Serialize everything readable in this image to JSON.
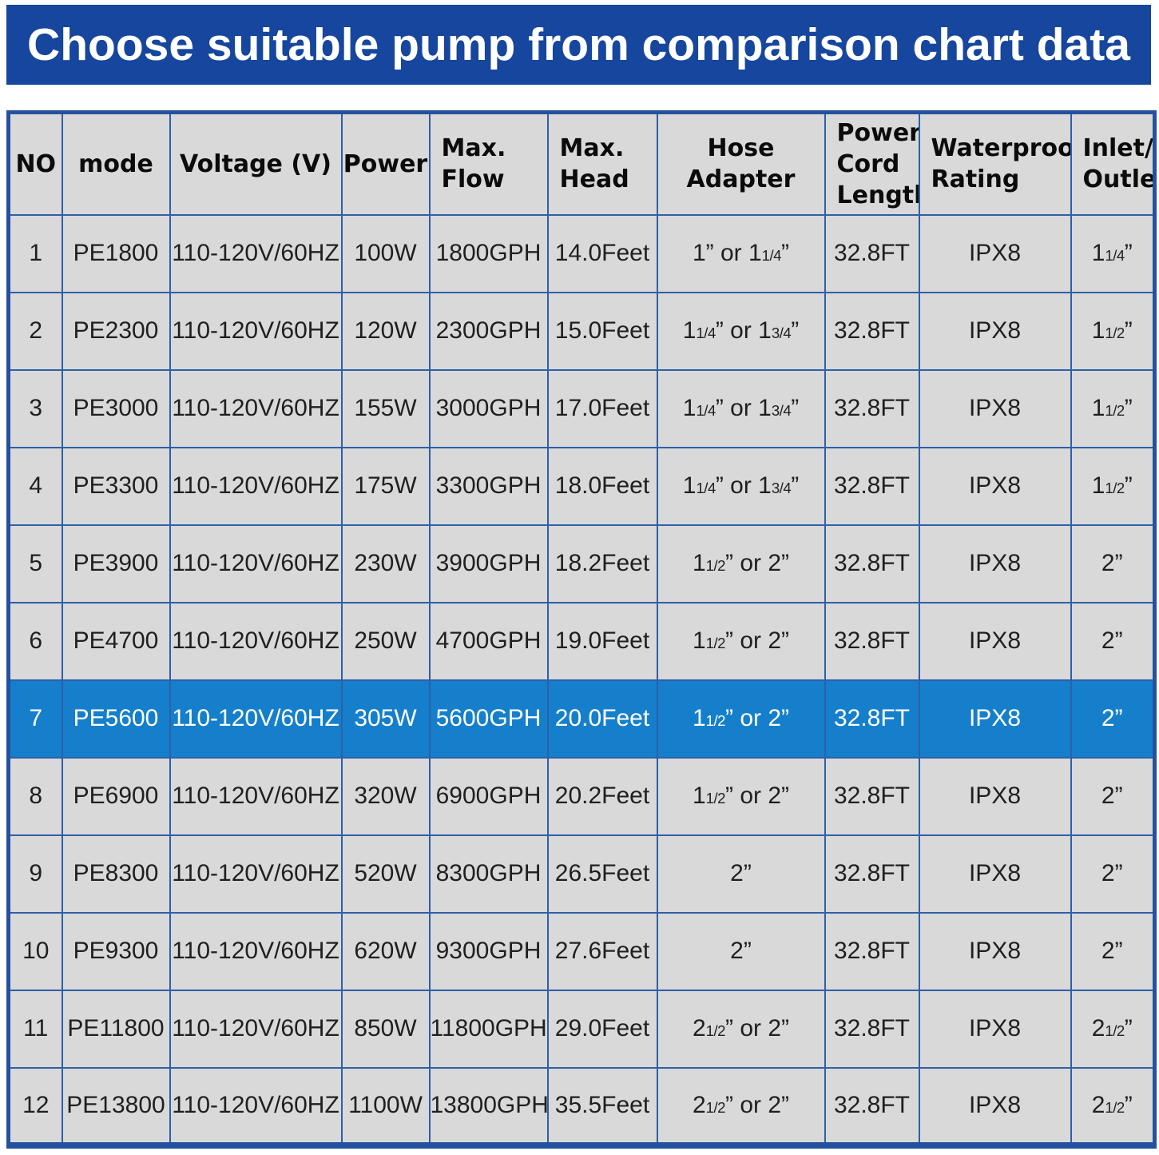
{
  "title": "Choose suitable pump from comparison chart data",
  "colors": {
    "title_bar_bg": "#16469D",
    "highlight_row_bg": "#157FCB",
    "cell_bg": "#D9D9D9",
    "grid_line": "#2F5FA8",
    "outer_border": "#24519E",
    "title_text": "#FFFFFF",
    "body_text": "#1F1F1F"
  },
  "table": {
    "columns": [
      {
        "key": "no",
        "label": "NO",
        "align": "center"
      },
      {
        "key": "mode",
        "label": "mode",
        "align": "center"
      },
      {
        "key": "voltage",
        "label": "Voltage (V)",
        "align": "center"
      },
      {
        "key": "power",
        "label": "Power",
        "align": "center"
      },
      {
        "key": "max-flow",
        "label": "Max.\nFlow",
        "align": "left"
      },
      {
        "key": "max-head",
        "label": "Max.\nHead",
        "align": "left"
      },
      {
        "key": "hose",
        "label": "Hose Adapter",
        "align": "center"
      },
      {
        "key": "cord",
        "label": "Power\nCord\nLength",
        "align": "left"
      },
      {
        "key": "waterproof",
        "label": "Waterproof\nRating",
        "align": "left"
      },
      {
        "key": "inlet",
        "label": "Inlet/\nOutlet",
        "align": "left"
      }
    ],
    "highlight_index": 6,
    "rows": [
      [
        "1",
        "PE1800",
        "110-120V/60HZ",
        "100W",
        "1800GPH",
        "14.0Feet",
        "1” or 1[1/4]”",
        "32.8FT",
        "IPX8",
        "1[1/4]”"
      ],
      [
        "2",
        "PE2300",
        "110-120V/60HZ",
        "120W",
        "2300GPH",
        "15.0Feet",
        "1[1/4]” or 1[3/4]”",
        "32.8FT",
        "IPX8",
        "1[1/2]”"
      ],
      [
        "3",
        "PE3000",
        "110-120V/60HZ",
        "155W",
        "3000GPH",
        "17.0Feet",
        "1[1/4]” or 1[3/4]”",
        "32.8FT",
        "IPX8",
        "1[1/2]”"
      ],
      [
        "4",
        "PE3300",
        "110-120V/60HZ",
        "175W",
        "3300GPH",
        "18.0Feet",
        "1[1/4]” or 1[3/4]”",
        "32.8FT",
        "IPX8",
        "1[1/2]”"
      ],
      [
        "5",
        "PE3900",
        "110-120V/60HZ",
        "230W",
        "3900GPH",
        "18.2Feet",
        "1[1/2]” or 2”",
        "32.8FT",
        "IPX8",
        "2”"
      ],
      [
        "6",
        "PE4700",
        "110-120V/60HZ",
        "250W",
        "4700GPH",
        "19.0Feet",
        "1[1/2]” or 2”",
        "32.8FT",
        "IPX8",
        "2”"
      ],
      [
        "7",
        "PE5600",
        "110-120V/60HZ",
        "305W",
        "5600GPH",
        "20.0Feet",
        "1[1/2]” or 2”",
        "32.8FT",
        "IPX8",
        "2”"
      ],
      [
        "8",
        "PE6900",
        "110-120V/60HZ",
        "320W",
        "6900GPH",
        "20.2Feet",
        "1[1/2]” or 2”",
        "32.8FT",
        "IPX8",
        "2”"
      ],
      [
        "9",
        "PE8300",
        "110-120V/60HZ",
        "520W",
        "8300GPH",
        "26.5Feet",
        "2”",
        "32.8FT",
        "IPX8",
        "2”"
      ],
      [
        "10",
        "PE9300",
        "110-120V/60HZ",
        "620W",
        "9300GPH",
        "27.6Feet",
        "2”",
        "32.8FT",
        "IPX8",
        "2”"
      ],
      [
        "11",
        "PE11800",
        "110-120V/60HZ",
        "850W",
        "11800GPH",
        "29.0Feet",
        "2[1/2]” or 2”",
        "32.8FT",
        "IPX8",
        "2[1/2]”"
      ],
      [
        "12",
        "PE13800",
        "110-120V/60HZ",
        "1100W",
        "13800GPH",
        "35.5Feet",
        "2[1/2]” or 2”",
        "32.8FT",
        "IPX8",
        "2[1/2]”"
      ]
    ]
  }
}
